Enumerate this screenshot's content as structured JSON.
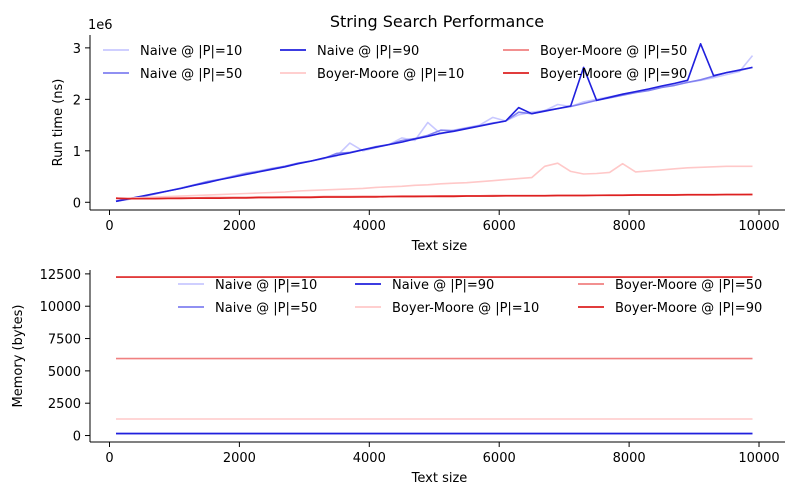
{
  "title": "String Search Performance",
  "chart_data": [
    {
      "type": "line",
      "xlabel": "Text size",
      "ylabel": "Run time (ns)",
      "y_offset_label": "1e6",
      "xlim": [
        -300,
        10400
      ],
      "ylim": [
        -150000,
        3250000
      ],
      "xticks": [
        0,
        2000,
        4000,
        6000,
        8000,
        10000
      ],
      "yticks": [
        0,
        1000000,
        2000000,
        3000000
      ],
      "ytick_labels": [
        "0",
        "1",
        "2",
        "3"
      ],
      "legend_placement": "top",
      "x": [
        100,
        300,
        500,
        700,
        900,
        1100,
        1300,
        1500,
        1700,
        1900,
        2100,
        2300,
        2500,
        2700,
        2900,
        3100,
        3300,
        3500,
        3700,
        3900,
        4100,
        4300,
        4500,
        4700,
        4900,
        5100,
        5300,
        5500,
        5700,
        5900,
        6100,
        6300,
        6500,
        6700,
        6900,
        7100,
        7300,
        7500,
        7700,
        7900,
        8100,
        8300,
        8500,
        8700,
        8900,
        9100,
        9300,
        9500,
        9700,
        9900
      ],
      "series": [
        {
          "name": "Naive @ |P|=10",
          "color": "#c8c8ff",
          "values": [
            30000,
            70000,
            110000,
            170000,
            220000,
            280000,
            340000,
            400000,
            450000,
            510000,
            570000,
            610000,
            660000,
            700000,
            750000,
            800000,
            850000,
            900000,
            1150000,
            1000000,
            1060000,
            1120000,
            1250000,
            1200000,
            1550000,
            1330000,
            1400000,
            1450000,
            1500000,
            1650000,
            1580000,
            1700000,
            1750000,
            1780000,
            1900000,
            1860000,
            1950000,
            2000000,
            2050000,
            2100000,
            2150000,
            2200000,
            2250000,
            2280000,
            2330000,
            2370000,
            2420000,
            2480000,
            2540000,
            2850000
          ]
        },
        {
          "name": "Naive @ |P|=50",
          "color": "#8080f0",
          "values": [
            20000,
            60000,
            110000,
            160000,
            220000,
            270000,
            330000,
            400000,
            440000,
            500000,
            560000,
            600000,
            650000,
            700000,
            760000,
            800000,
            850000,
            950000,
            970000,
            1020000,
            1080000,
            1120000,
            1200000,
            1240000,
            1300000,
            1400000,
            1390000,
            1440000,
            1490000,
            1540000,
            1580000,
            1750000,
            1720000,
            1780000,
            1820000,
            1860000,
            1920000,
            1980000,
            2030000,
            2080000,
            2130000,
            2170000,
            2230000,
            2270000,
            2330000,
            2380000,
            2450000,
            2520000,
            2560000,
            2620000
          ]
        },
        {
          "name": "Naive @ |P|=90",
          "color": "#2020dd",
          "values": [
            20000,
            70000,
            120000,
            170000,
            220000,
            270000,
            330000,
            380000,
            440000,
            490000,
            540000,
            590000,
            640000,
            690000,
            750000,
            800000,
            860000,
            910000,
            960000,
            1020000,
            1070000,
            1120000,
            1170000,
            1230000,
            1280000,
            1340000,
            1380000,
            1430000,
            1480000,
            1530000,
            1580000,
            1840000,
            1720000,
            1770000,
            1820000,
            1870000,
            2620000,
            1980000,
            2040000,
            2100000,
            2150000,
            2200000,
            2260000,
            2310000,
            2370000,
            3080000,
            2460000,
            2520000,
            2570000,
            2620000
          ]
        },
        {
          "name": "Boyer-Moore @ |P|=10",
          "color": "#ffc8c8",
          "values": [
            70000,
            80000,
            90000,
            100000,
            110000,
            120000,
            130000,
            140000,
            150000,
            160000,
            170000,
            180000,
            190000,
            200000,
            220000,
            230000,
            240000,
            250000,
            260000,
            270000,
            290000,
            300000,
            310000,
            330000,
            340000,
            360000,
            370000,
            380000,
            400000,
            420000,
            440000,
            460000,
            480000,
            700000,
            760000,
            600000,
            550000,
            560000,
            580000,
            750000,
            590000,
            610000,
            630000,
            650000,
            670000,
            680000,
            690000,
            700000,
            700000,
            700000
          ]
        },
        {
          "name": "Boyer-Moore @ |P|=50",
          "color": "#f08080",
          "values": [
            80000,
            70000,
            70000,
            75000,
            80000,
            85000,
            85000,
            90000,
            90000,
            95000,
            95000,
            100000,
            100000,
            105000,
            105000,
            105000,
            110000,
            110000,
            110000,
            115000,
            115000,
            115000,
            120000,
            120000,
            120000,
            125000,
            125000,
            125000,
            125000,
            130000,
            130000,
            130000,
            130000,
            130000,
            135000,
            135000,
            135000,
            135000,
            140000,
            140000,
            145000,
            145000,
            145000,
            145000,
            150000,
            150000,
            150000,
            150000,
            150000,
            155000
          ]
        },
        {
          "name": "Boyer-Moore @ |P|=90",
          "color": "#dd2020",
          "values": [
            80000,
            70000,
            70000,
            70000,
            75000,
            75000,
            80000,
            80000,
            80000,
            85000,
            85000,
            90000,
            90000,
            95000,
            95000,
            95000,
            100000,
            100000,
            100000,
            105000,
            105000,
            110000,
            110000,
            110000,
            115000,
            115000,
            115000,
            120000,
            120000,
            120000,
            125000,
            125000,
            125000,
            125000,
            130000,
            130000,
            130000,
            135000,
            135000,
            135000,
            140000,
            140000,
            140000,
            140000,
            145000,
            145000,
            145000,
            150000,
            150000,
            150000
          ]
        }
      ]
    },
    {
      "type": "line",
      "xlabel": "Text size",
      "ylabel": "Memory (bytes)",
      "xlim": [
        -300,
        10400
      ],
      "ylim": [
        -500,
        12800
      ],
      "xticks": [
        0,
        2000,
        4000,
        6000,
        8000,
        10000
      ],
      "yticks": [
        0,
        2500,
        5000,
        7500,
        10000,
        12500
      ],
      "legend_placement": "top",
      "x_range": [
        100,
        9900
      ],
      "series": [
        {
          "name": "Naive @ |P|=10",
          "color": "#c8c8ff",
          "value": 150
        },
        {
          "name": "Naive @ |P|=50",
          "color": "#8080f0",
          "value": 150
        },
        {
          "name": "Naive @ |P|=90",
          "color": "#2020dd",
          "value": 150
        },
        {
          "name": "Boyer-Moore @ |P|=10",
          "color": "#ffc8c8",
          "value": 1280
        },
        {
          "name": "Boyer-Moore @ |P|=50",
          "color": "#f08080",
          "value": 5950
        },
        {
          "name": "Boyer-Moore @ |P|=90",
          "color": "#dd2020",
          "value": 12250
        }
      ]
    }
  ]
}
